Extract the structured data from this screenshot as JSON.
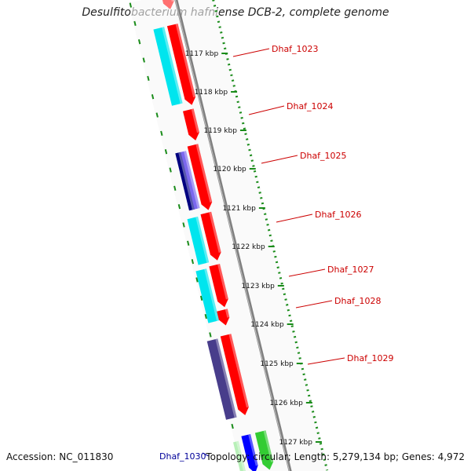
{
  "title": "Desulfitobacterium hafniense DCB-2, complete genome",
  "footer": {
    "accession": "Accession: NC_011830",
    "topology": "Topology: circular; Length: 5,279,134 bp; Genes: 4,972"
  },
  "colors": {
    "forward_gene": "#ff0000",
    "cds_cyan": "#00e5ee",
    "cds_navy": "#000080",
    "cds_slate": "#483d8b",
    "gene_green": "#33cc33",
    "gene_blue": "#0000ff",
    "label_red": "#cc0000",
    "label_blue": "#000099",
    "ruler_green": "#1a8c1a",
    "backbone": "#808080"
  },
  "kbp_labels": [
    "1117 kbp",
    "1118 kbp",
    "1119 kbp",
    "1120 kbp",
    "1121 kbp",
    "1122 kbp",
    "1123 kbp",
    "1124 kbp",
    "1125 kbp",
    "1126 kbp",
    "1127 kbp"
  ],
  "gene_labels": [
    {
      "text": "Dhaf_1023",
      "color": "red"
    },
    {
      "text": "Dhaf_1024",
      "color": "red"
    },
    {
      "text": "Dhaf_1025",
      "color": "red"
    },
    {
      "text": "Dhaf_1026",
      "color": "red"
    },
    {
      "text": "Dhaf_1027",
      "color": "red"
    },
    {
      "text": "Dhaf_1028",
      "color": "red"
    },
    {
      "text": "Dhaf_1029",
      "color": "red"
    },
    {
      "text": "Dhaf_1030",
      "color": "blue"
    }
  ]
}
